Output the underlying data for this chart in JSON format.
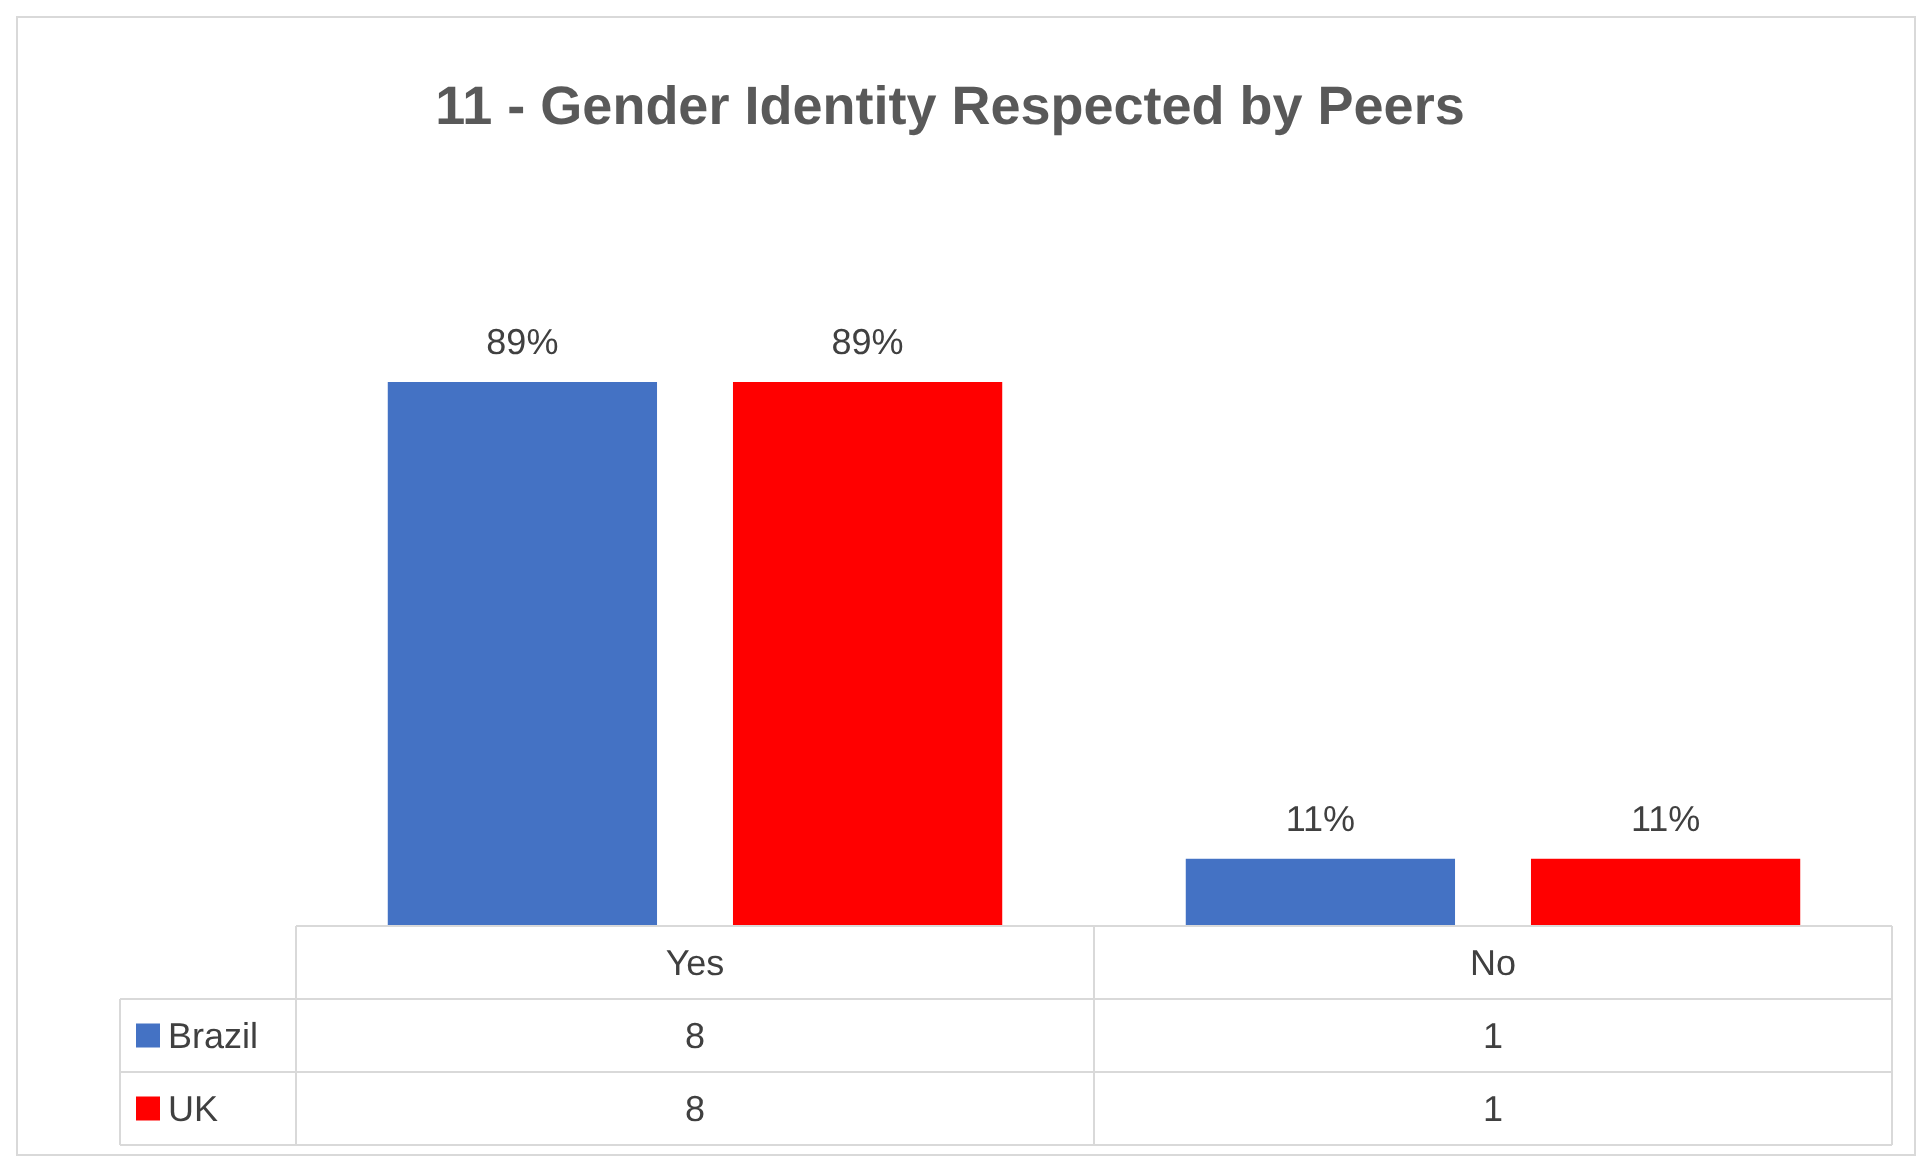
{
  "chart_data": {
    "type": "bar",
    "title": "11 - Gender Identity Respected by Peers",
    "categories": [
      "Yes",
      "No"
    ],
    "series": [
      {
        "name": "Brazil",
        "color": "#4472c4",
        "values": [
          89,
          11
        ],
        "value_labels": [
          "89%",
          "11%"
        ]
      },
      {
        "name": "UK",
        "color": "#ff0000",
        "values": [
          89,
          11
        ],
        "value_labels": [
          "89%",
          "11%"
        ]
      }
    ],
    "legend": "bottom",
    "annotations": [
      "8",
      "1",
      "8",
      "1"
    ]
  }
}
